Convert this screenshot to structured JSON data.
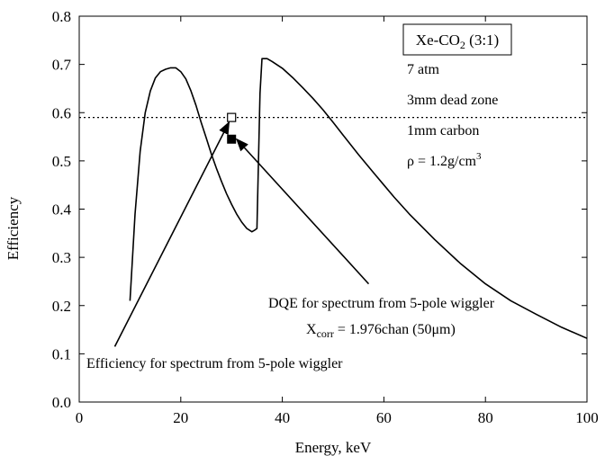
{
  "chart_data": {
    "type": "line",
    "xlabel": "Energy, keV",
    "ylabel": "Efficiency",
    "xlim": [
      0,
      100
    ],
    "ylim": [
      0.0,
      0.8
    ],
    "x_ticks": [
      0,
      20,
      40,
      60,
      80,
      100
    ],
    "x_tick_labels": [
      "0",
      "20",
      "40",
      "60",
      "80",
      "100"
    ],
    "y_ticks": [
      0.0,
      0.1,
      0.2,
      0.3,
      0.4,
      0.5,
      0.6,
      0.7,
      0.8
    ],
    "y_tick_labels": [
      "0.0",
      "0.1",
      "0.2",
      "0.3",
      "0.4",
      "0.5",
      "0.6",
      "0.7",
      "0.8"
    ],
    "grid": false,
    "series": [
      {
        "x": [
          10,
          11,
          12,
          13,
          14,
          15,
          16,
          17,
          18,
          19,
          20,
          21,
          22,
          23,
          24,
          25,
          26,
          27,
          28,
          29,
          30,
          31,
          32,
          33,
          34,
          34.5,
          35,
          35.3,
          35.6,
          36,
          37,
          38,
          40,
          42,
          44,
          46,
          48,
          50,
          52,
          55,
          58,
          60,
          62,
          65,
          70,
          75,
          80,
          85,
          90,
          95,
          100
        ],
        "y": [
          0.21,
          0.39,
          0.52,
          0.6,
          0.645,
          0.672,
          0.685,
          0.69,
          0.693,
          0.693,
          0.685,
          0.67,
          0.645,
          0.615,
          0.58,
          0.548,
          0.515,
          0.485,
          0.458,
          0.432,
          0.41,
          0.39,
          0.373,
          0.36,
          0.353,
          0.356,
          0.36,
          0.5,
          0.64,
          0.712,
          0.712,
          0.706,
          0.692,
          0.673,
          0.652,
          0.63,
          0.606,
          0.58,
          0.553,
          0.513,
          0.475,
          0.45,
          0.425,
          0.39,
          0.337,
          0.288,
          0.245,
          0.21,
          0.182,
          0.155,
          0.132
        ],
        "color": "#000000"
      }
    ],
    "reference_line": {
      "y": 0.59,
      "style": "dotted"
    },
    "points": [
      {
        "x": 30,
        "y": 0.59,
        "marker": "open-square"
      },
      {
        "x": 30,
        "y": 0.545,
        "marker": "filled-square"
      }
    ],
    "legend_box": "Xe-CO₂ (3:1)",
    "notes": [
      "7 atm",
      "3mm dead zone",
      "1mm carbon",
      "ρ = 1.2g/cm³"
    ],
    "annotations": [
      {
        "text": "DQE for spectrum from 5-pole wiggler",
        "arrow_from": [
          57,
          0.245
        ],
        "arrow_to": [
          31,
          0.545
        ]
      },
      {
        "text": "Xcorr = 1.976chan (50μm)"
      },
      {
        "text": "Efficiency for spectrum from 5-pole wiggler",
        "arrow_from": [
          7,
          0.115
        ],
        "arrow_to": [
          29.5,
          0.58
        ]
      }
    ]
  },
  "text": {
    "legend_box_main": "Xe-CO",
    "legend_box_sub": "2",
    "legend_box_tail": " (3:1)",
    "note1": "7 atm",
    "note2": "3mm dead zone",
    "note3": "1mm carbon",
    "note4_main": "ρ = 1.2g/cm",
    "note4_sup": "3",
    "dqe_label": "DQE for spectrum from 5-pole wiggler",
    "xcorr_main": "X",
    "xcorr_sub": "corr",
    "xcorr_tail": " = 1.976chan (50μm)",
    "eff_label": "Efficiency for spectrum from 5-pole wiggler"
  }
}
